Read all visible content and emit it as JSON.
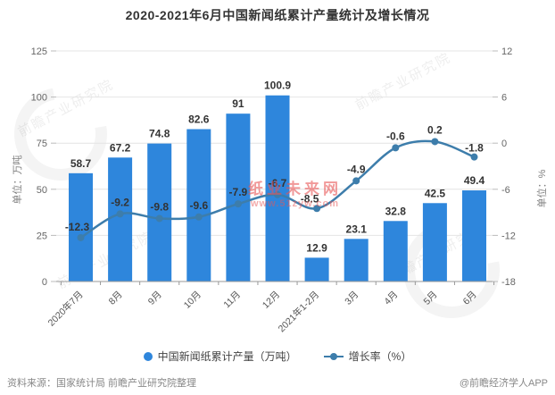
{
  "title": "2020-2021年6月中国新闻纸累计产量统计及增长情况",
  "chart_data": {
    "type": "bar+line",
    "categories": [
      "2020年7月",
      "8月",
      "9月",
      "10月",
      "11月",
      "12月",
      "2021年1-2月",
      "3月",
      "4月",
      "5月",
      "6月"
    ],
    "series": [
      {
        "name": "中国新闻纸累计产量（万吨）",
        "type": "bar",
        "axis": "left",
        "color": "#2e86dc",
        "values": [
          58.7,
          67.2,
          74.8,
          82.6,
          91,
          100.9,
          12.9,
          23.1,
          32.8,
          42.5,
          49.4
        ]
      },
      {
        "name": "增长率（%）",
        "type": "line",
        "axis": "right",
        "color": "#3d7dab",
        "values": [
          -12.3,
          -9.2,
          -9.8,
          -9.6,
          -7.9,
          -6.7,
          -8.5,
          -4.9,
          -0.6,
          0.2,
          -1.8
        ]
      }
    ],
    "left_axis": {
      "name": "单位：万吨",
      "min": 0,
      "max": 125,
      "ticks": [
        125,
        100,
        75,
        50,
        25,
        0
      ]
    },
    "right_axis": {
      "name": "单位：%",
      "min": -18,
      "max": 12,
      "ticks": [
        12,
        6,
        0,
        -6,
        -12,
        -18
      ]
    },
    "grid": true,
    "legend_position": "bottom",
    "smooth_line": true
  },
  "legend": {
    "items": [
      {
        "label": "中国新闻纸累计产量（万吨）",
        "marker": "circle"
      },
      {
        "label": "增长率（%）",
        "marker": "line-dot"
      }
    ]
  },
  "footer": {
    "source": "资料来源：国家统计局 前瞻产业研究院整理",
    "credit": "@前瞻经济学人APP"
  },
  "watermarks": {
    "brand": "前瞻产业研究院",
    "site_name": "纸业未来网",
    "site_url": "www.51zyw.com"
  }
}
